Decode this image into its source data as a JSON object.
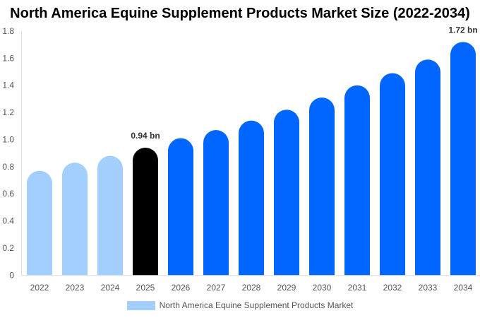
{
  "chart_data": {
    "type": "bar",
    "title": "North America Equine Supplement Products Market Size (2022-2034)",
    "categories": [
      "2022",
      "2023",
      "2024",
      "2025",
      "2026",
      "2027",
      "2028",
      "2029",
      "2030",
      "2031",
      "2032",
      "2033",
      "2034"
    ],
    "series": [
      {
        "name": "North America Equine Supplement Products Market",
        "values": [
          0.77,
          0.83,
          0.88,
          0.94,
          1.01,
          1.07,
          1.14,
          1.22,
          1.31,
          1.4,
          1.49,
          1.59,
          1.72
        ]
      }
    ],
    "bar_colors": [
      "#a2cffe",
      "#a2cffe",
      "#a2cffe",
      "#000000",
      "#0066ff",
      "#0066ff",
      "#0066ff",
      "#0066ff",
      "#0066ff",
      "#0066ff",
      "#0066ff",
      "#0066ff",
      "#0066ff"
    ],
    "data_labels": {
      "3": "0.94 bn",
      "12": "1.72 bn"
    },
    "ylim": [
      0,
      1.8
    ],
    "yticks": [
      "0",
      "0.2",
      "0.4",
      "0.6",
      "0.8",
      "1.0",
      "1.2",
      "1.4",
      "1.6",
      "1.8"
    ],
    "xlabel": "",
    "ylabel": "",
    "grid": false,
    "legend_position": "bottom"
  }
}
